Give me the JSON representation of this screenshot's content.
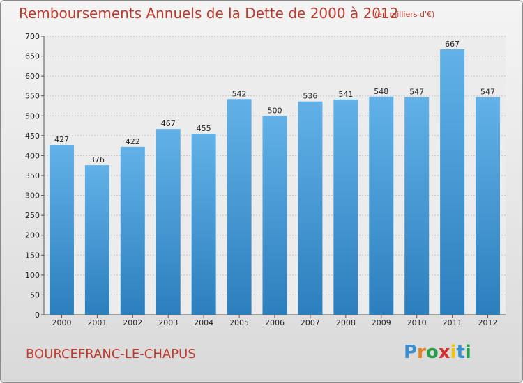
{
  "title": "Remboursements Annuels de la Dette de 2000 à 2012",
  "unit": "(en milliers d'€)",
  "commune": "BOURCEFRANC-LE-CHAPUS",
  "logo": {
    "letters": [
      "P",
      "r",
      "o",
      "x",
      "i",
      "t",
      "i"
    ],
    "colors": [
      "#3a8fd0",
      "#e67e22",
      "#2a9d4a",
      "#d63031",
      "#f1c40f",
      "#3a8fd0",
      "#2a9d4a"
    ]
  },
  "colors": {
    "bar_top": "#62b1e8",
    "bar_bottom": "#2c7fbd",
    "title": "#c0392b"
  },
  "chart_data": {
    "type": "bar",
    "title": "Remboursements Annuels de la Dette de 2000 à 2012",
    "xlabel": "",
    "ylabel": "",
    "categories": [
      "2000",
      "2001",
      "2002",
      "2003",
      "2004",
      "2005",
      "2006",
      "2007",
      "2008",
      "2009",
      "2010",
      "2011",
      "2012"
    ],
    "values": [
      427,
      376,
      422,
      467,
      455,
      542,
      500,
      536,
      541,
      548,
      547,
      667,
      547
    ],
    "ylim": [
      0,
      700
    ],
    "yticks": [
      0,
      50,
      100,
      150,
      200,
      250,
      300,
      350,
      400,
      450,
      500,
      550,
      600,
      650,
      700
    ],
    "grid": true
  }
}
